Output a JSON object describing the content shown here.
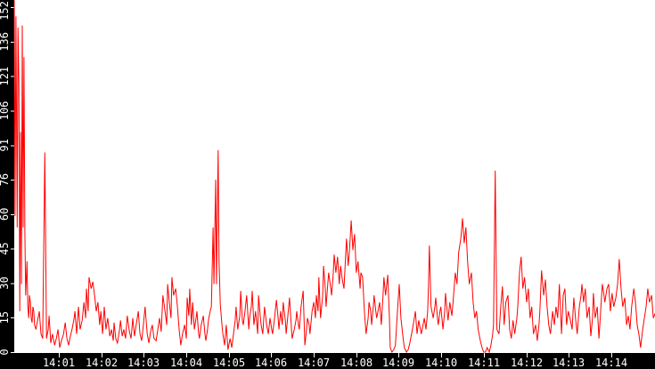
{
  "chart_data": {
    "type": "line",
    "title": "",
    "xlabel": "",
    "ylabel": "",
    "x_unit": "minutes after 14:00",
    "grid": false,
    "legend": "none",
    "plot_bg": "#ffffff",
    "axis_bg": "#000000",
    "tick_color": "#ffffff",
    "label_color": "#ffffff",
    "line_color": "#ff0000",
    "y_tick_labels": [
      "0",
      "15",
      "30",
      "45",
      "60",
      "76",
      "91",
      "106",
      "121",
      "136",
      "152"
    ],
    "y_tick_values": [
      0,
      15.2,
      30.4,
      45.6,
      60.8,
      76,
      91.2,
      106.4,
      121.6,
      136.8,
      152
    ],
    "x_tick_labels": [
      "14:01",
      "14:02",
      "14:03",
      "14:04",
      "14:05",
      "14:06",
      "14:07",
      "14:08",
      "14:09",
      "14:10",
      "14:11",
      "14:12",
      "14:13",
      "14:14"
    ],
    "x_tick_minutes": [
      1,
      2,
      3,
      4,
      5,
      6,
      7,
      8,
      9,
      10,
      11,
      12,
      13,
      14
    ],
    "xlim_minutes": [
      -0.07,
      15.03
    ],
    "ylim": [
      0,
      155.2
    ],
    "points": [
      [
        -0.05,
        155
      ],
      [
        -0.03,
        60
      ],
      [
        -0.01,
        148
      ],
      [
        0.02,
        55
      ],
      [
        0.04,
        143
      ],
      [
        0.06,
        118
      ],
      [
        0.08,
        18
      ],
      [
        0.1,
        97
      ],
      [
        0.12,
        30
      ],
      [
        0.14,
        144
      ],
      [
        0.16,
        55
      ],
      [
        0.18,
        130
      ],
      [
        0.2,
        53
      ],
      [
        0.22,
        25
      ],
      [
        0.25,
        40
      ],
      [
        0.27,
        20
      ],
      [
        0.29,
        15
      ],
      [
        0.31,
        25
      ],
      [
        0.33,
        22
      ],
      [
        0.35,
        15
      ],
      [
        0.37,
        13
      ],
      [
        0.39,
        20
      ],
      [
        0.41,
        18
      ],
      [
        0.43,
        12
      ],
      [
        0.46,
        10
      ],
      [
        0.5,
        14
      ],
      [
        0.54,
        18
      ],
      [
        0.58,
        8
      ],
      [
        0.62,
        6
      ],
      [
        0.67,
        88
      ],
      [
        0.71,
        6
      ],
      [
        0.75,
        10
      ],
      [
        0.77,
        16
      ],
      [
        0.81,
        4
      ],
      [
        0.85,
        8
      ],
      [
        0.9,
        3
      ],
      [
        0.94,
        6
      ],
      [
        0.98,
        10
      ],
      [
        1.02,
        2
      ],
      [
        1.06,
        5
      ],
      [
        1.11,
        8
      ],
      [
        1.15,
        13
      ],
      [
        1.19,
        6
      ],
      [
        1.23,
        3
      ],
      [
        1.27,
        7
      ],
      [
        1.31,
        10
      ],
      [
        1.36,
        15
      ],
      [
        1.38,
        18
      ],
      [
        1.42,
        8
      ],
      [
        1.46,
        20
      ],
      [
        1.5,
        10
      ],
      [
        1.55,
        14
      ],
      [
        1.59,
        22
      ],
      [
        1.63,
        15
      ],
      [
        1.65,
        28
      ],
      [
        1.69,
        18
      ],
      [
        1.71,
        33
      ],
      [
        1.76,
        28
      ],
      [
        1.8,
        31
      ],
      [
        1.84,
        25
      ],
      [
        1.88,
        18
      ],
      [
        1.92,
        22
      ],
      [
        1.96,
        12
      ],
      [
        1.99,
        18
      ],
      [
        2.03,
        8
      ],
      [
        2.07,
        20
      ],
      [
        2.11,
        10
      ],
      [
        2.15,
        15
      ],
      [
        2.2,
        7
      ],
      [
        2.24,
        10
      ],
      [
        2.28,
        5
      ],
      [
        2.3,
        13
      ],
      [
        2.34,
        6
      ],
      [
        2.38,
        4
      ],
      [
        2.43,
        10
      ],
      [
        2.45,
        14
      ],
      [
        2.49,
        7
      ],
      [
        2.53,
        10
      ],
      [
        2.57,
        6
      ],
      [
        2.61,
        16
      ],
      [
        2.66,
        9
      ],
      [
        2.7,
        6
      ],
      [
        2.74,
        15
      ],
      [
        2.78,
        7
      ],
      [
        2.82,
        12
      ],
      [
        2.87,
        18
      ],
      [
        2.91,
        8
      ],
      [
        2.95,
        5
      ],
      [
        2.99,
        12
      ],
      [
        3.03,
        20
      ],
      [
        3.08,
        8
      ],
      [
        3.12,
        4
      ],
      [
        3.16,
        9
      ],
      [
        3.2,
        12
      ],
      [
        3.24,
        6
      ],
      [
        3.29,
        5
      ],
      [
        3.33,
        10
      ],
      [
        3.37,
        15
      ],
      [
        3.41,
        9
      ],
      [
        3.45,
        25
      ],
      [
        3.5,
        18
      ],
      [
        3.54,
        12
      ],
      [
        3.56,
        30
      ],
      [
        3.6,
        22
      ],
      [
        3.64,
        15
      ],
      [
        3.66,
        33
      ],
      [
        3.7,
        25
      ],
      [
        3.75,
        28
      ],
      [
        3.79,
        20
      ],
      [
        3.83,
        10
      ],
      [
        3.87,
        3
      ],
      [
        3.91,
        8
      ],
      [
        3.96,
        12
      ],
      [
        4.0,
        6
      ],
      [
        4.02,
        24
      ],
      [
        4.06,
        16
      ],
      [
        4.08,
        28
      ],
      [
        4.12,
        12
      ],
      [
        4.15,
        22
      ],
      [
        4.19,
        10
      ],
      [
        4.23,
        15
      ],
      [
        4.25,
        18
      ],
      [
        4.29,
        8
      ],
      [
        4.31,
        6
      ],
      [
        4.35,
        12
      ],
      [
        4.4,
        16
      ],
      [
        4.44,
        8
      ],
      [
        4.46,
        5
      ],
      [
        4.5,
        10
      ],
      [
        4.52,
        14
      ],
      [
        4.56,
        18
      ],
      [
        4.59,
        20
      ],
      [
        4.63,
        55
      ],
      [
        4.65,
        30
      ],
      [
        4.69,
        76
      ],
      [
        4.71,
        30
      ],
      [
        4.75,
        89
      ],
      [
        4.77,
        40
      ],
      [
        4.8,
        21
      ],
      [
        4.84,
        12
      ],
      [
        4.86,
        8
      ],
      [
        4.9,
        3
      ],
      [
        4.94,
        12
      ],
      [
        4.98,
        1
      ],
      [
        5.03,
        6
      ],
      [
        5.07,
        2
      ],
      [
        5.11,
        8
      ],
      [
        5.15,
        14
      ],
      [
        5.17,
        20
      ],
      [
        5.21,
        10
      ],
      [
        5.26,
        16
      ],
      [
        5.28,
        27
      ],
      [
        5.32,
        14
      ],
      [
        5.34,
        12
      ],
      [
        5.38,
        18
      ],
      [
        5.42,
        25
      ],
      [
        5.47,
        10
      ],
      [
        5.49,
        15
      ],
      [
        5.53,
        20
      ],
      [
        5.55,
        27
      ],
      [
        5.59,
        12
      ],
      [
        5.63,
        18
      ],
      [
        5.68,
        8
      ],
      [
        5.7,
        25
      ],
      [
        5.74,
        16
      ],
      [
        5.76,
        12
      ],
      [
        5.8,
        8
      ],
      [
        5.84,
        20
      ],
      [
        5.89,
        12
      ],
      [
        5.93,
        8
      ],
      [
        5.97,
        15
      ],
      [
        6.01,
        10
      ],
      [
        6.03,
        8
      ],
      [
        6.07,
        14
      ],
      [
        6.12,
        23
      ],
      [
        6.16,
        15
      ],
      [
        6.18,
        10
      ],
      [
        6.22,
        18
      ],
      [
        6.26,
        12
      ],
      [
        6.28,
        22
      ],
      [
        6.33,
        14
      ],
      [
        6.35,
        8
      ],
      [
        6.39,
        16
      ],
      [
        6.43,
        24
      ],
      [
        6.47,
        12
      ],
      [
        6.49,
        6
      ],
      [
        6.54,
        10
      ],
      [
        6.58,
        14
      ],
      [
        6.6,
        18
      ],
      [
        6.64,
        12
      ],
      [
        6.66,
        10
      ],
      [
        6.7,
        20
      ],
      [
        6.75,
        27
      ],
      [
        6.79,
        3
      ],
      [
        6.83,
        10
      ],
      [
        6.85,
        15
      ],
      [
        6.89,
        12
      ],
      [
        6.91,
        8
      ],
      [
        6.96,
        18
      ],
      [
        7.0,
        22
      ],
      [
        7.04,
        15
      ],
      [
        7.06,
        25
      ],
      [
        7.1,
        18
      ],
      [
        7.12,
        33
      ],
      [
        7.16,
        15
      ],
      [
        7.21,
        25
      ],
      [
        7.23,
        38
      ],
      [
        7.27,
        28
      ],
      [
        7.29,
        20
      ],
      [
        7.33,
        30
      ],
      [
        7.35,
        35
      ],
      [
        7.4,
        28
      ],
      [
        7.42,
        25
      ],
      [
        7.46,
        35
      ],
      [
        7.48,
        43
      ],
      [
        7.52,
        35
      ],
      [
        7.56,
        42
      ],
      [
        7.6,
        30
      ],
      [
        7.63,
        38
      ],
      [
        7.67,
        32
      ],
      [
        7.71,
        28
      ],
      [
        7.73,
        35
      ],
      [
        7.77,
        50
      ],
      [
        7.81,
        38
      ],
      [
        7.84,
        45
      ],
      [
        7.88,
        58
      ],
      [
        7.92,
        45
      ],
      [
        7.96,
        52
      ],
      [
        8.0,
        35
      ],
      [
        8.04,
        40
      ],
      [
        8.09,
        28
      ],
      [
        8.11,
        35
      ],
      [
        8.15,
        33
      ],
      [
        8.19,
        18
      ],
      [
        8.23,
        8
      ],
      [
        8.28,
        15
      ],
      [
        8.3,
        22
      ],
      [
        8.34,
        18
      ],
      [
        8.36,
        12
      ],
      [
        8.4,
        20
      ],
      [
        8.42,
        25
      ],
      [
        8.46,
        18
      ],
      [
        8.48,
        15
      ],
      [
        8.53,
        20
      ],
      [
        8.55,
        22
      ],
      [
        8.59,
        12
      ],
      [
        8.63,
        25
      ],
      [
        8.65,
        33
      ],
      [
        8.69,
        25
      ],
      [
        8.74,
        34
      ],
      [
        8.78,
        15
      ],
      [
        8.8,
        2
      ],
      [
        8.84,
        0
      ],
      [
        8.88,
        1
      ],
      [
        8.92,
        3
      ],
      [
        8.97,
        18
      ],
      [
        9.01,
        30
      ],
      [
        9.05,
        15
      ],
      [
        9.09,
        8
      ],
      [
        9.13,
        2
      ],
      [
        9.18,
        0
      ],
      [
        9.22,
        1
      ],
      [
        9.26,
        4
      ],
      [
        9.3,
        8
      ],
      [
        9.34,
        12
      ],
      [
        9.39,
        18
      ],
      [
        9.43,
        8
      ],
      [
        9.47,
        14
      ],
      [
        9.51,
        10
      ],
      [
        9.53,
        8
      ],
      [
        9.57,
        12
      ],
      [
        9.6,
        15
      ],
      [
        9.64,
        10
      ],
      [
        9.68,
        18
      ],
      [
        9.7,
        30
      ],
      [
        9.72,
        47
      ],
      [
        9.76,
        20
      ],
      [
        9.81,
        15
      ],
      [
        9.85,
        20
      ],
      [
        9.87,
        24
      ],
      [
        9.91,
        15
      ],
      [
        9.93,
        12
      ],
      [
        9.97,
        18
      ],
      [
        9.99,
        20
      ],
      [
        10.04,
        10
      ],
      [
        10.08,
        18
      ],
      [
        10.1,
        26
      ],
      [
        10.14,
        18
      ],
      [
        10.16,
        14
      ],
      [
        10.2,
        22
      ],
      [
        10.25,
        16
      ],
      [
        10.29,
        25
      ],
      [
        10.33,
        35
      ],
      [
        10.37,
        30
      ],
      [
        10.41,
        44
      ],
      [
        10.46,
        50
      ],
      [
        10.5,
        59
      ],
      [
        10.54,
        48
      ],
      [
        10.58,
        55
      ],
      [
        10.62,
        40
      ],
      [
        10.66,
        30
      ],
      [
        10.71,
        35
      ],
      [
        10.75,
        22
      ],
      [
        10.79,
        15
      ],
      [
        10.83,
        18
      ],
      [
        10.87,
        10
      ],
      [
        10.92,
        5
      ],
      [
        10.96,
        2
      ],
      [
        11.0,
        0
      ],
      [
        11.04,
        0
      ],
      [
        11.08,
        2
      ],
      [
        11.13,
        0
      ],
      [
        11.17,
        3
      ],
      [
        11.21,
        8
      ],
      [
        11.23,
        12
      ],
      [
        11.27,
        80
      ],
      [
        11.31,
        10
      ],
      [
        11.36,
        8
      ],
      [
        11.4,
        20
      ],
      [
        11.44,
        29
      ],
      [
        11.48,
        12
      ],
      [
        11.52,
        22
      ],
      [
        11.57,
        25
      ],
      [
        11.61,
        10
      ],
      [
        11.65,
        6
      ],
      [
        11.69,
        14
      ],
      [
        11.73,
        8
      ],
      [
        11.78,
        15
      ],
      [
        11.8,
        20
      ],
      [
        11.84,
        35
      ],
      [
        11.88,
        42
      ],
      [
        11.92,
        28
      ],
      [
        11.96,
        33
      ],
      [
        12.01,
        22
      ],
      [
        12.05,
        28
      ],
      [
        12.09,
        15
      ],
      [
        12.13,
        20
      ],
      [
        12.17,
        8
      ],
      [
        12.22,
        12
      ],
      [
        12.26,
        5
      ],
      [
        12.3,
        12
      ],
      [
        12.32,
        18
      ],
      [
        12.36,
        36
      ],
      [
        12.41,
        25
      ],
      [
        12.45,
        32
      ],
      [
        12.49,
        20
      ],
      [
        12.53,
        12
      ],
      [
        12.57,
        8
      ],
      [
        12.62,
        18
      ],
      [
        12.66,
        12
      ],
      [
        12.7,
        20
      ],
      [
        12.74,
        15
      ],
      [
        12.78,
        30
      ],
      [
        12.83,
        8
      ],
      [
        12.87,
        25
      ],
      [
        12.91,
        28
      ],
      [
        12.95,
        12
      ],
      [
        12.99,
        18
      ],
      [
        13.04,
        14
      ],
      [
        13.08,
        10
      ],
      [
        13.12,
        24
      ],
      [
        13.16,
        15
      ],
      [
        13.2,
        8
      ],
      [
        13.25,
        20
      ],
      [
        13.29,
        25
      ],
      [
        13.31,
        30
      ],
      [
        13.35,
        22
      ],
      [
        13.39,
        28
      ],
      [
        13.43,
        15
      ],
      [
        13.48,
        20
      ],
      [
        13.52,
        7
      ],
      [
        13.56,
        15
      ],
      [
        13.58,
        26
      ],
      [
        13.62,
        15
      ],
      [
        13.67,
        20
      ],
      [
        13.71,
        6
      ],
      [
        13.75,
        18
      ],
      [
        13.79,
        30
      ],
      [
        13.83,
        25
      ],
      [
        13.85,
        22
      ],
      [
        13.9,
        28
      ],
      [
        13.94,
        30
      ],
      [
        13.98,
        18
      ],
      [
        14.02,
        26
      ],
      [
        14.06,
        20
      ],
      [
        14.11,
        24
      ],
      [
        14.15,
        30
      ],
      [
        14.19,
        41
      ],
      [
        14.23,
        28
      ],
      [
        14.27,
        20
      ],
      [
        14.32,
        24
      ],
      [
        14.36,
        12
      ],
      [
        14.4,
        16
      ],
      [
        14.44,
        10
      ],
      [
        14.48,
        20
      ],
      [
        14.53,
        28
      ],
      [
        14.57,
        22
      ],
      [
        14.61,
        12
      ],
      [
        14.65,
        8
      ],
      [
        14.69,
        2
      ],
      [
        14.74,
        10
      ],
      [
        14.78,
        15
      ],
      [
        14.82,
        20
      ],
      [
        14.86,
        28
      ],
      [
        14.9,
        22
      ],
      [
        14.95,
        25
      ],
      [
        14.99,
        15
      ],
      [
        15.03,
        17
      ]
    ]
  }
}
